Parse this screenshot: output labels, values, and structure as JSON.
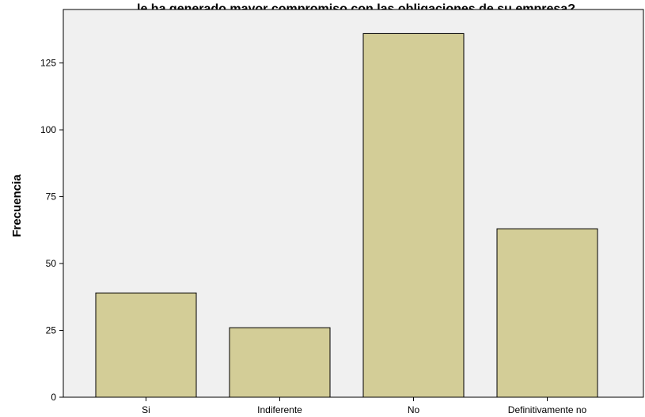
{
  "chart_data": {
    "type": "bar",
    "title": "le ha generado mayor compromiso con las obligaciones de su empresa?",
    "xlabel": "",
    "ylabel": "Frecuencia",
    "categories": [
      "Si",
      "Indiferente",
      "No",
      "Definitivamente no"
    ],
    "values": [
      39,
      26,
      136,
      63
    ],
    "yticks": [
      0,
      25,
      50,
      75,
      100,
      125
    ],
    "ylim": [
      0,
      145
    ],
    "grid": false,
    "colors": {
      "bar_fill": "#d3cd97",
      "bar_stroke": "#000000",
      "plot_background": "#f0f0f0"
    }
  }
}
